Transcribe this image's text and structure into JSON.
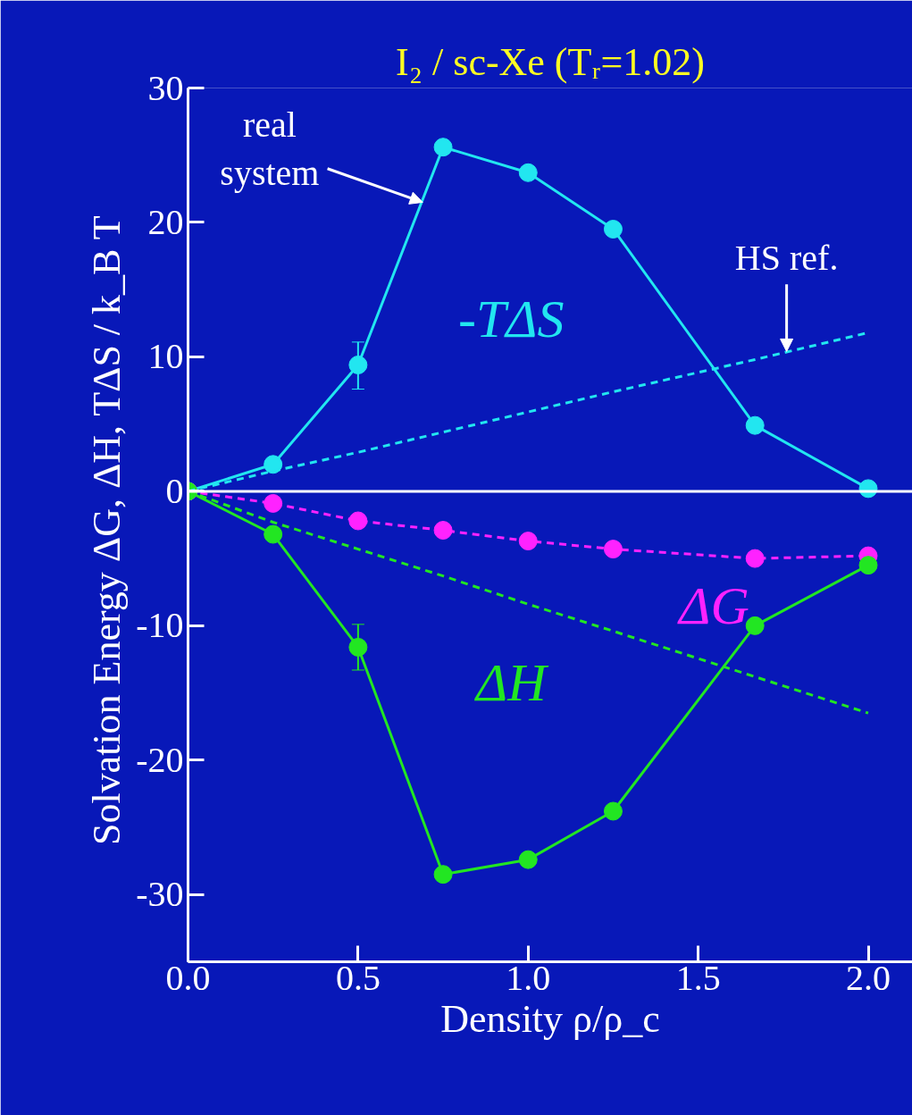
{
  "chart_data": {
    "type": "line",
    "title": "I₂ / sc-Xe (Tᵣ=1.02)",
    "xlabel": "Density ρ/ρ_c",
    "ylabel": "Solvation Energy  ΔG, ΔH, TΔS / k_B T",
    "x": [
      0,
      0.25,
      0.5,
      0.75,
      1.0,
      1.25,
      1.667,
      2.0
    ],
    "series": [
      {
        "name": "-TΔS",
        "color": "#22e6f0",
        "values": [
          0,
          2.0,
          9.4,
          25.6,
          23.7,
          19.5,
          4.9,
          0.2
        ],
        "errors": [
          null,
          null,
          [
            7.6,
            11.1
          ],
          null,
          null,
          null,
          null,
          null
        ],
        "marker": "circle",
        "line_style": "solid"
      },
      {
        "name": "ΔG",
        "color": "#ff22ff",
        "values": [
          0,
          -0.9,
          -2.2,
          -2.9,
          -3.7,
          -4.3,
          -5.0,
          -4.8
        ],
        "marker": "circle",
        "line_style": "dashed"
      },
      {
        "name": "ΔH",
        "color": "#22e622",
        "values": [
          0,
          -3.2,
          -11.6,
          -28.5,
          -27.4,
          -23.8,
          -10.0,
          -5.5
        ],
        "errors": [
          null,
          null,
          [
            -13.3,
            -9.9
          ],
          null,
          null,
          null,
          null,
          null
        ],
        "marker": "circle",
        "line_style": "solid"
      },
      {
        "color": "#22e6f0",
        "values": [
          0,
          1.5,
          2.9,
          4.4,
          5.9,
          7.4,
          9.8,
          11.8
        ],
        "marker": "none",
        "line_style": "dashed"
      },
      {
        "color": "#22e622",
        "values": [
          0,
          -2.3,
          -4.3,
          -6.3,
          -8.4,
          -10.4,
          -13.8,
          -16.5
        ],
        "marker": "none",
        "line_style": "dashed"
      }
    ],
    "annotations": [
      {
        "text": "real system",
        "x": 0.69,
        "y": 21.5
      },
      {
        "text": "HS ref.",
        "x": 1.76,
        "y": 10.4
      }
    ],
    "ref_lines": [
      {
        "axis": "y",
        "value": 0,
        "color": "#ffffff"
      }
    ],
    "xlim": [
      0,
      2.13
    ],
    "ylim": [
      -35,
      30
    ],
    "xticks": [
      {
        "value": 0.0,
        "label": "0.0"
      },
      {
        "value": 0.5,
        "label": "0.5"
      },
      {
        "value": 1.0,
        "label": "1.0"
      },
      {
        "value": 1.5,
        "label": "1.5"
      },
      {
        "value": 2.0,
        "label": "2.0"
      }
    ],
    "yticks": [
      -30,
      -20,
      -10,
      0,
      10,
      20,
      30
    ],
    "grid": false
  }
}
